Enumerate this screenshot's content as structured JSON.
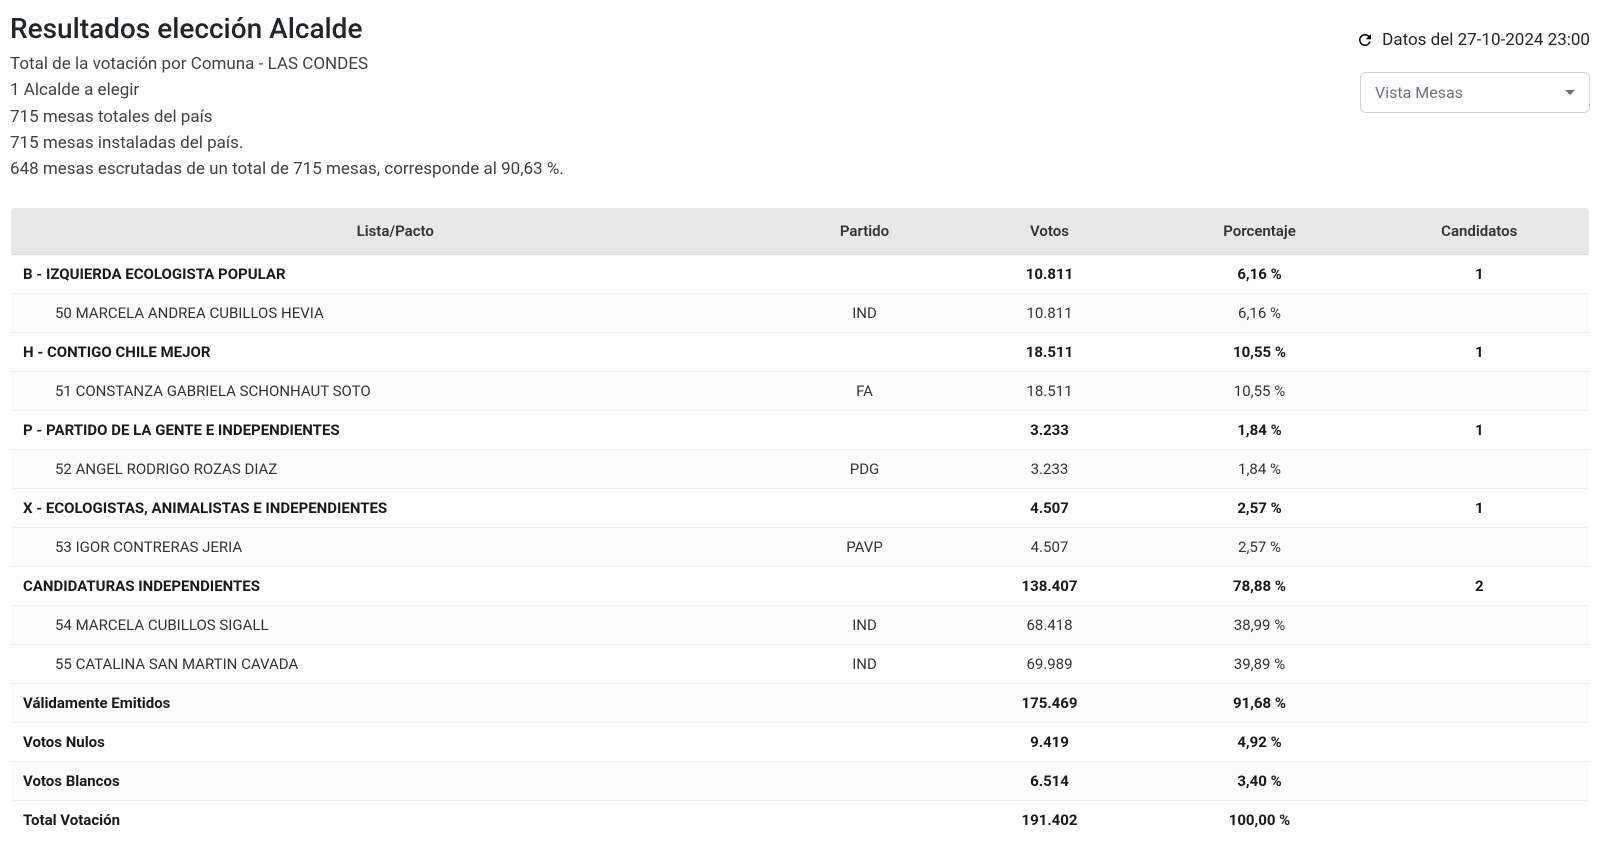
{
  "header": {
    "title": "Resultados elección Alcalde",
    "subtitle_line1": "Total de la votación por Comuna - LAS CONDES",
    "subtitle_line2": "1 Alcalde a elegir",
    "subtitle_line3": "715 mesas totales del país",
    "subtitle_line4": "715 mesas instaladas del país.",
    "subtitle_line5": "648 mesas escrutadas de un total de 715 mesas, corresponde al 90,63 %."
  },
  "timestamp": "Datos del 27-10-2024 23:00",
  "dropdown": {
    "selected": "Vista Mesas"
  },
  "table": {
    "columns": {
      "name": "Lista/Pacto",
      "party": "Partido",
      "votes": "Votos",
      "pct": "Porcentaje",
      "cand": "Candidatos"
    },
    "rows": [
      {
        "type": "group",
        "name": "B - IZQUIERDA ECOLOGISTA POPULAR",
        "party": "",
        "votes": "10.811",
        "pct": "6,16 %",
        "cand": "1"
      },
      {
        "type": "candidate",
        "name": "50 MARCELA ANDREA CUBILLOS HEVIA",
        "party": "IND",
        "votes": "10.811",
        "pct": "6,16 %",
        "cand": ""
      },
      {
        "type": "group",
        "name": "H - CONTIGO CHILE MEJOR",
        "party": "",
        "votes": "18.511",
        "pct": "10,55 %",
        "cand": "1"
      },
      {
        "type": "candidate",
        "name": "51 CONSTANZA GABRIELA SCHONHAUT SOTO",
        "party": "FA",
        "votes": "18.511",
        "pct": "10,55 %",
        "cand": ""
      },
      {
        "type": "group",
        "name": "P - PARTIDO DE LA GENTE E INDEPENDIENTES",
        "party": "",
        "votes": "3.233",
        "pct": "1,84 %",
        "cand": "1"
      },
      {
        "type": "candidate",
        "name": "52 ANGEL RODRIGO ROZAS DIAZ",
        "party": "PDG",
        "votes": "3.233",
        "pct": "1,84 %",
        "cand": ""
      },
      {
        "type": "group",
        "name": "X - ECOLOGISTAS, ANIMALISTAS E INDEPENDIENTES",
        "party": "",
        "votes": "4.507",
        "pct": "2,57 %",
        "cand": "1"
      },
      {
        "type": "candidate",
        "name": "53 IGOR CONTRERAS JERIA",
        "party": "PAVP",
        "votes": "4.507",
        "pct": "2,57 %",
        "cand": ""
      },
      {
        "type": "group",
        "name": "CANDIDATURAS INDEPENDIENTES",
        "party": "",
        "votes": "138.407",
        "pct": "78,88 %",
        "cand": "2"
      },
      {
        "type": "candidate",
        "name": "54 MARCELA CUBILLOS SIGALL",
        "party": "IND",
        "votes": "68.418",
        "pct": "38,99 %",
        "cand": ""
      },
      {
        "type": "candidate",
        "name": "55 CATALINA SAN MARTIN CAVADA",
        "party": "IND",
        "votes": "69.989",
        "pct": "39,89 %",
        "cand": ""
      },
      {
        "type": "summary",
        "name": "Válidamente Emitidos",
        "party": "",
        "votes": "175.469",
        "pct": "91,68 %",
        "cand": ""
      },
      {
        "type": "summary",
        "name": "Votos Nulos",
        "party": "",
        "votes": "9.419",
        "pct": "4,92 %",
        "cand": ""
      },
      {
        "type": "summary",
        "name": "Votos Blancos",
        "party": "",
        "votes": "6.514",
        "pct": "3,40 %",
        "cand": ""
      },
      {
        "type": "summary",
        "name": "Total Votación",
        "party": "",
        "votes": "191.402",
        "pct": "100,00 %",
        "cand": ""
      }
    ]
  },
  "colors": {
    "text": "#212529",
    "header_bg": "#e8e8e8",
    "border": "#e7e7e7",
    "row_border": "#f0f0f0",
    "muted": "#6b7280"
  }
}
